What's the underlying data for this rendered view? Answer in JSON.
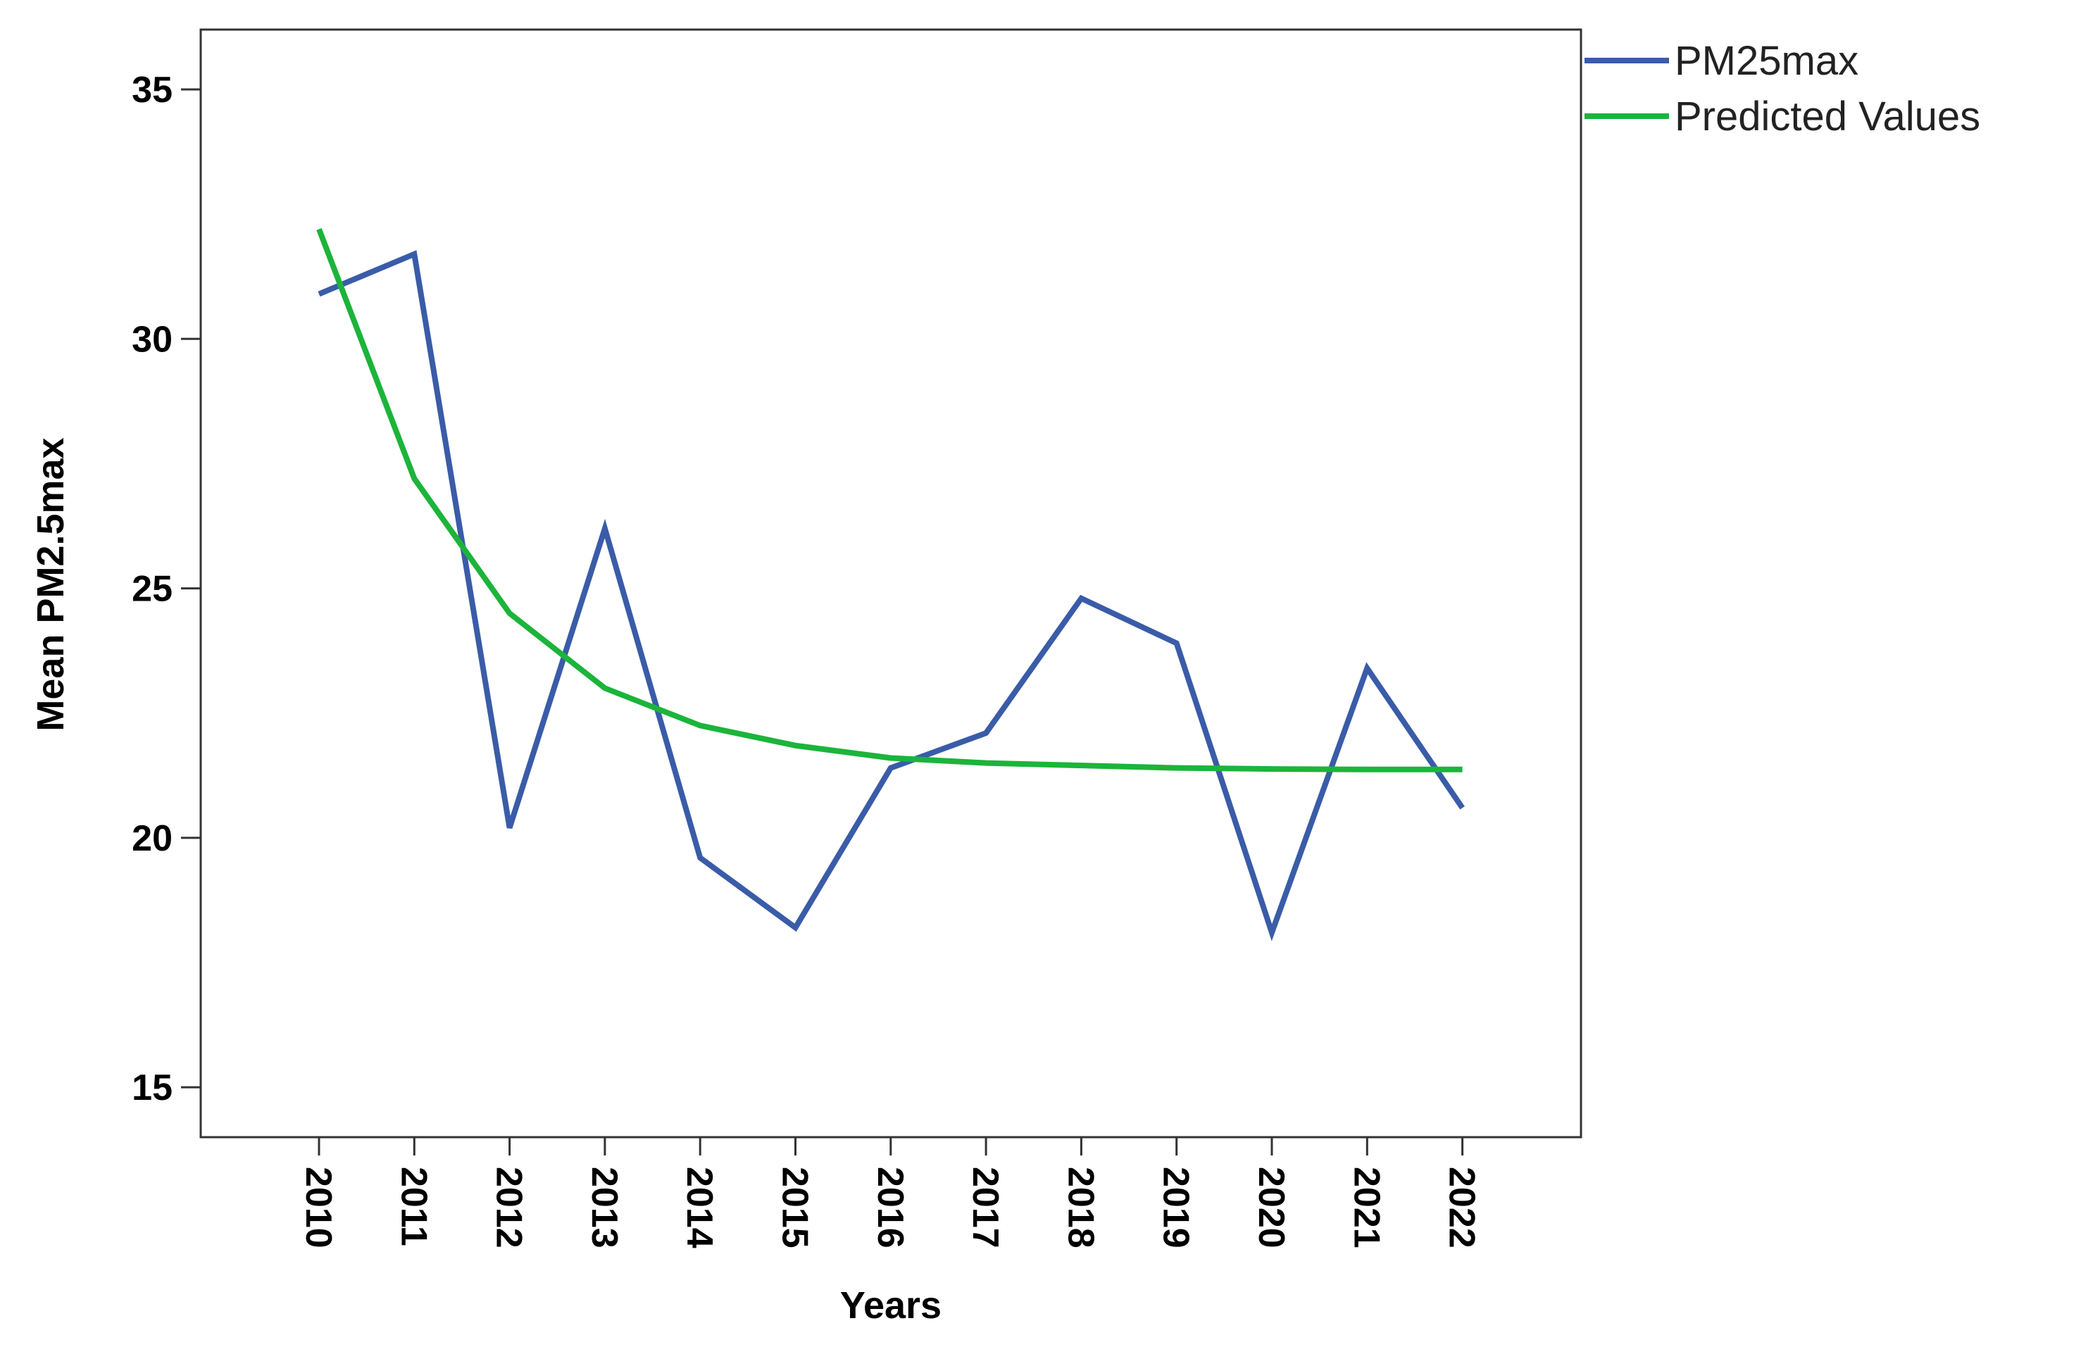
{
  "chart_data": {
    "type": "line",
    "title": "",
    "xlabel": "Years",
    "ylabel": "Mean PM2.5max",
    "categories": [
      "2010",
      "2011",
      "2012",
      "2013",
      "2014",
      "2015",
      "2016",
      "2017",
      "2018",
      "2019",
      "2020",
      "2021",
      "2022"
    ],
    "yticks": [
      "15",
      "20",
      "25",
      "30",
      "35"
    ],
    "ylim": [
      14,
      36.2
    ],
    "grid": false,
    "legend_position": "top-right, outside plot",
    "series": [
      {
        "name": "PM25max",
        "color": "#3a5ca8",
        "values": [
          30.9,
          31.7,
          20.2,
          26.2,
          19.6,
          18.2,
          21.4,
          22.1,
          24.8,
          23.9,
          18.1,
          23.4,
          20.6
        ]
      },
      {
        "name": "Predicted Values",
        "color": "#1cb43a",
        "values": [
          32.2,
          27.2,
          24.5,
          23.0,
          22.25,
          21.85,
          21.6,
          21.5,
          21.45,
          21.4,
          21.38,
          21.37,
          21.37
        ]
      }
    ]
  }
}
